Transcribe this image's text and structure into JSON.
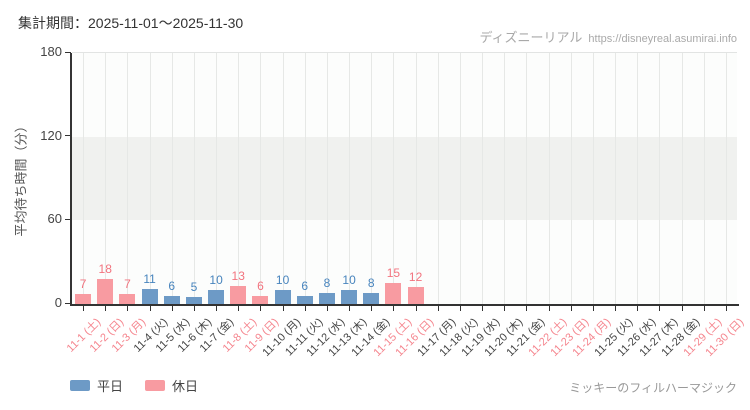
{
  "header": {
    "period_label": "集計期間：2025-11-01～2025-11-30"
  },
  "credit": {
    "site_name": "ディズニーリアル",
    "site_url": "https://disneyreal.asumirai.info"
  },
  "footer": {
    "attraction_name": "ミッキーのフィルハーマジック"
  },
  "legend": {
    "items": [
      {
        "label": "平日",
        "type": "weekday"
      },
      {
        "label": "休日",
        "type": "holiday"
      }
    ]
  },
  "colors": {
    "weekday_bar": "#6d9ac6",
    "holiday_bar": "#f89ba1",
    "weekday_value": "#4784bd",
    "holiday_value": "#f2737e",
    "weekday_tick": "#444444",
    "holiday_tick": "#f5858e",
    "grid": "#e6e8e6",
    "band": "#f0f1ef",
    "axis": "#333333"
  },
  "chart_data": {
    "type": "bar",
    "title": "",
    "xlabel": "",
    "ylabel": "平均待ち時間（分）",
    "ylim": [
      0,
      180
    ],
    "yticks": [
      0,
      60,
      120,
      180
    ],
    "band": {
      "from": 60,
      "to": 120
    },
    "categories": [
      "11-1 (土)",
      "11-2 (日)",
      "11-3 (月)",
      "11-4 (火)",
      "11-5 (水)",
      "11-6 (木)",
      "11-7 (金)",
      "11-8 (土)",
      "11-9 (日)",
      "11-10 (月)",
      "11-11 (火)",
      "11-12 (水)",
      "11-13 (木)",
      "11-14 (金)",
      "11-15 (土)",
      "11-16 (日)",
      "11-17 (月)",
      "11-18 (火)",
      "11-19 (水)",
      "11-20 (木)",
      "11-21 (金)",
      "11-22 (土)",
      "11-23 (日)",
      "11-24 (月)",
      "11-25 (火)",
      "11-26 (水)",
      "11-27 (木)",
      "11-28 (金)",
      "11-29 (土)",
      "11-30 (日)"
    ],
    "day_types": [
      "holiday",
      "holiday",
      "holiday",
      "weekday",
      "weekday",
      "weekday",
      "weekday",
      "holiday",
      "holiday",
      "weekday",
      "weekday",
      "weekday",
      "weekday",
      "weekday",
      "holiday",
      "holiday",
      "weekday",
      "weekday",
      "weekday",
      "weekday",
      "weekday",
      "holiday",
      "holiday",
      "holiday",
      "weekday",
      "weekday",
      "weekday",
      "weekday",
      "holiday",
      "holiday"
    ],
    "values": [
      7,
      18,
      7,
      11,
      6,
      5,
      10,
      13,
      6,
      10,
      6,
      8,
      10,
      8,
      15,
      12,
      null,
      null,
      null,
      null,
      null,
      null,
      null,
      null,
      null,
      null,
      null,
      null,
      null,
      null
    ],
    "series": [
      {
        "name": "平日",
        "values": [
          null,
          null,
          null,
          11,
          6,
          5,
          10,
          null,
          null,
          10,
          6,
          8,
          10,
          8,
          null,
          null,
          null,
          null,
          null,
          null,
          null,
          null,
          null,
          null,
          null,
          null,
          null,
          null,
          null,
          null
        ]
      },
      {
        "name": "休日",
        "values": [
          7,
          18,
          7,
          null,
          null,
          null,
          null,
          13,
          6,
          null,
          null,
          null,
          null,
          null,
          15,
          12,
          null,
          null,
          null,
          null,
          null,
          null,
          null,
          null,
          null,
          null,
          null,
          null,
          null,
          null
        ]
      }
    ],
    "legend_position": "bottom-left",
    "grid": "vertical"
  }
}
